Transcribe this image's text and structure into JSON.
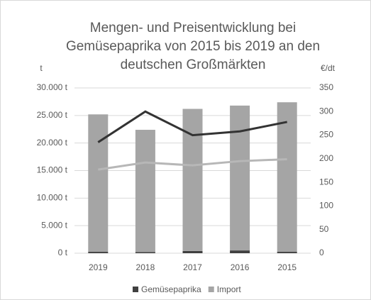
{
  "chart_data": {
    "type": "bar",
    "title": [
      "Mengen- und Preisentwicklung bei",
      "Gemüsepaprika von 2015 bis 2019 an den",
      "deutschen Großmärkten"
    ],
    "ylabel": "t",
    "y2label": "€/dt",
    "categories": [
      "2019",
      "2018",
      "2017",
      "2016",
      "2015"
    ],
    "stacked": true,
    "series": [
      {
        "name": "Gemüsepaprika",
        "type": "bar",
        "color": "#404040",
        "values": [
          250,
          200,
          400,
          500,
          250
        ]
      },
      {
        "name": "Import",
        "type": "bar",
        "color": "#a5a5a5",
        "values": [
          24950,
          22200,
          25800,
          26300,
          27150
        ]
      },
      {
        "type": "line",
        "axis": "y2",
        "color": "#333333",
        "values": [
          235,
          300,
          250,
          258,
          278
        ]
      },
      {
        "type": "line",
        "axis": "y2",
        "color": "#b7b7b7",
        "values": [
          177,
          192,
          186,
          195,
          199
        ]
      }
    ],
    "ylim": [
      0,
      30000
    ],
    "yticks": [
      {
        "value": 0,
        "label": "0 t"
      },
      {
        "value": 5000,
        "label": "5.000 t"
      },
      {
        "value": 10000,
        "label": "10.000 t"
      },
      {
        "value": 15000,
        "label": "15.000 t"
      },
      {
        "value": 20000,
        "label": "20.000 t"
      },
      {
        "value": 25000,
        "label": "25.000 t"
      },
      {
        "value": 30000,
        "label": "30.000 t"
      }
    ],
    "y2lim": [
      0,
      350
    ],
    "y2ticks": [
      0,
      50,
      100,
      150,
      200,
      250,
      300,
      350
    ],
    "grid": true,
    "legend": "bottom"
  }
}
